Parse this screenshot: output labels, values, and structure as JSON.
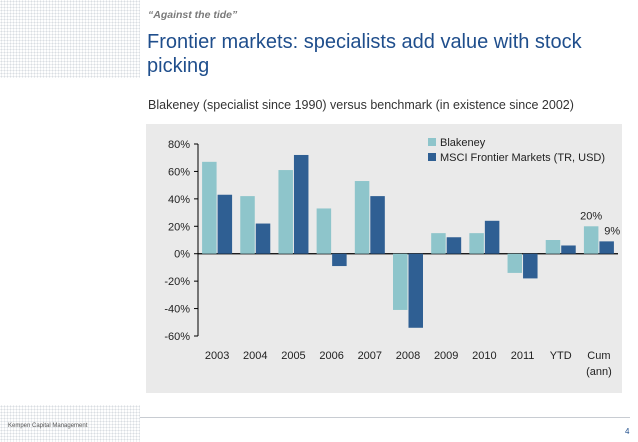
{
  "header": {
    "kicker": "“Against the tide”",
    "title": "Frontier markets: specialists add value with stock picking",
    "subtitle": "Blakeney (specialist since 1990) versus benchmark (in existence since 2002)"
  },
  "footer": {
    "company": "Kempen Capital Management",
    "page_number": "4"
  },
  "colors": {
    "blakeney": "#8ec5cb",
    "msci": "#2f5f93",
    "chart_background": "#eaeaea",
    "title": "#1f4e8c"
  },
  "chart_data": {
    "type": "bar",
    "categories": [
      "2003",
      "2004",
      "2005",
      "2006",
      "2007",
      "2008",
      "2009",
      "2010",
      "2011",
      "YTD",
      "Cum\n(ann)"
    ],
    "series": [
      {
        "name": "Blakeney",
        "values": [
          67,
          42,
          61,
          33,
          53,
          -41,
          15,
          15,
          -14,
          10,
          20
        ]
      },
      {
        "name": "MSCI Frontier Markets (TR, USD)",
        "values": [
          43,
          22,
          72,
          -9,
          42,
          -54,
          12,
          24,
          -18,
          6,
          9
        ]
      }
    ],
    "data_labels": [
      {
        "series": 0,
        "category": 10,
        "text": "20%"
      },
      {
        "series": 1,
        "category": 10,
        "text": "9%"
      }
    ],
    "y_ticks": [
      "80%",
      "60%",
      "40%",
      "20%",
      "0%",
      "-20%",
      "-40%",
      "-60%"
    ],
    "ylim": [
      -60,
      80
    ],
    "legend_position": "top-right",
    "grid": false
  }
}
